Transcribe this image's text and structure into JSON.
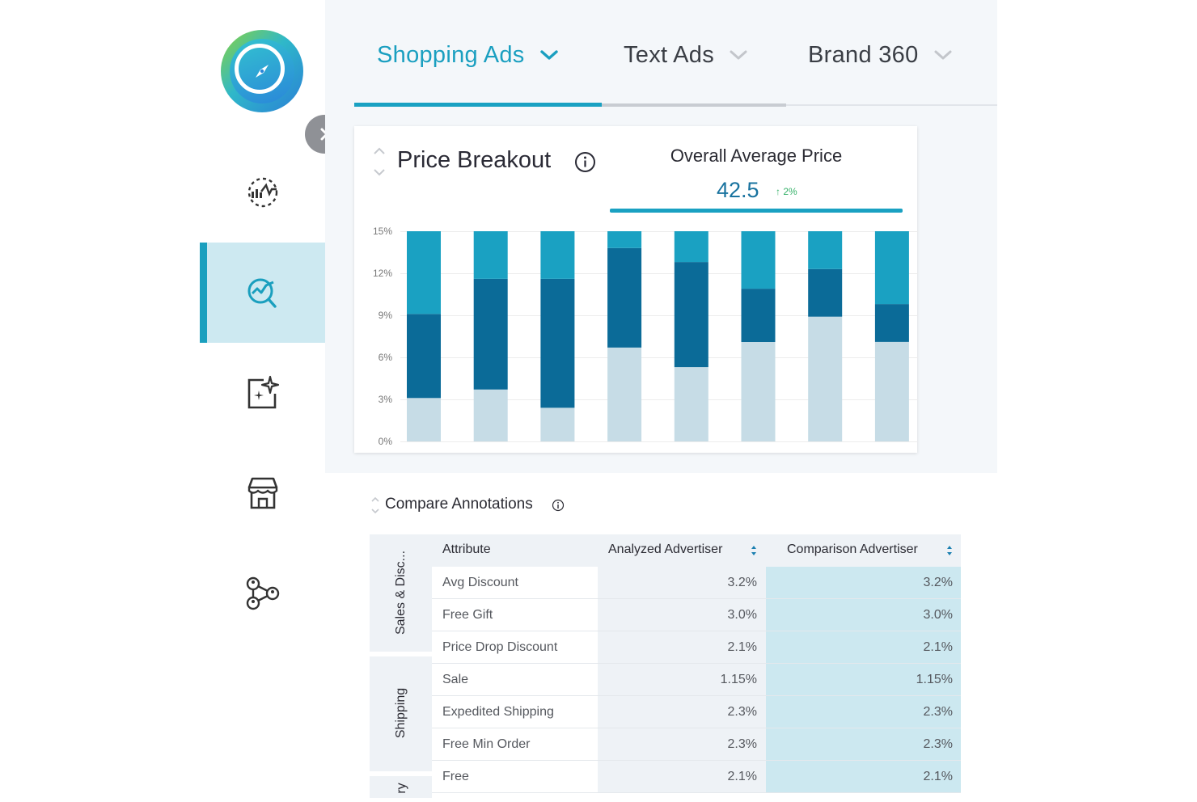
{
  "tabs": [
    {
      "label": "Shopping Ads",
      "active": true
    },
    {
      "label": "Text Ads",
      "active": false
    },
    {
      "label": "Brand 360",
      "active": false
    }
  ],
  "sidebar": {
    "items": [
      {
        "icon": "analytics-icon",
        "active": false
      },
      {
        "icon": "search-trend-icon",
        "active": true
      },
      {
        "icon": "ai-sparkle-image-icon",
        "active": false
      },
      {
        "icon": "store-icon",
        "active": false
      },
      {
        "icon": "network-users-icon",
        "active": false
      }
    ]
  },
  "price_breakout": {
    "title": "Price Breakout",
    "kpi_label": "Overall Average Price",
    "kpi_value": "42.5",
    "kpi_change": "↑ 2%"
  },
  "chart_data": {
    "type": "bar",
    "stacked": true,
    "categories": [
      "",
      "",
      "",
      "",
      "",
      "",
      "",
      ""
    ],
    "yticks": [
      "15%",
      "12%",
      "9%",
      "6%",
      "3%",
      "0%"
    ],
    "ylim": [
      0,
      15
    ],
    "grid": true,
    "series": [
      {
        "color": "#c6dce6",
        "values": [
          3.1,
          3.7,
          2.4,
          6.7,
          5.3,
          7.1,
          8.9,
          7.1
        ]
      },
      {
        "color": "#0b6b98",
        "values": [
          6.0,
          7.9,
          9.2,
          7.1,
          7.5,
          3.8,
          3.4,
          2.7
        ]
      },
      {
        "color": "#1aa1c2",
        "values": [
          5.9,
          3.4,
          3.4,
          1.2,
          2.2,
          4.1,
          2.7,
          5.2
        ]
      }
    ]
  },
  "compare": {
    "title": "Compare Annotations",
    "headers": {
      "attribute": "Attribute",
      "analyzed": "Analyzed Advertiser",
      "comparison": "Comparison Advertiser"
    },
    "groups": [
      {
        "label": "Sales & Disc..."
      },
      {
        "label": "Shipping"
      },
      {
        "label": "ry"
      }
    ],
    "rows": [
      {
        "attribute": "Avg Discount",
        "analyzed": "3.2%",
        "comparison": "3.2%"
      },
      {
        "attribute": "Free Gift",
        "analyzed": "3.0%",
        "comparison": "3.0%"
      },
      {
        "attribute": "Price Drop Discount",
        "analyzed": "2.1%",
        "comparison": "2.1%"
      },
      {
        "attribute": "Sale",
        "analyzed": "1.15%",
        "comparison": "1.15%"
      },
      {
        "attribute": "Expedited Shipping",
        "analyzed": "2.3%",
        "comparison": "2.3%"
      },
      {
        "attribute": "Free Min Order",
        "analyzed": "2.3%",
        "comparison": "2.3%"
      },
      {
        "attribute": "Free",
        "analyzed": "2.1%",
        "comparison": "2.1%"
      }
    ]
  },
  "colors": {
    "accent": "#1aa1c2",
    "dark": "#0b6b98",
    "light": "#c6dce6",
    "highlight": "#cce8f0"
  }
}
